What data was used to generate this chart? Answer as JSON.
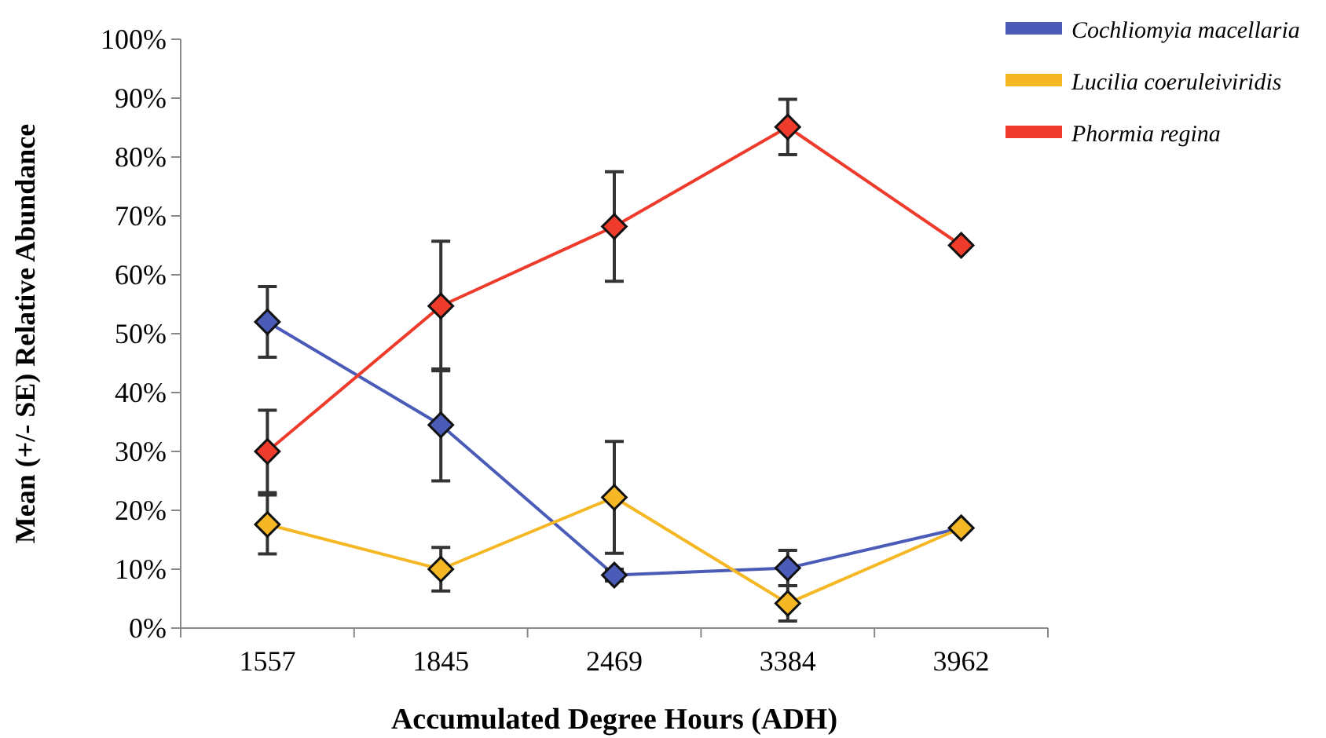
{
  "chart_data": {
    "type": "line",
    "xlabel": "Accumulated Degree Hours (ADH)",
    "ylabel": "Mean (+/- SE) Relative Abundance",
    "categories": [
      "1557",
      "1845",
      "2469",
      "3384",
      "3962"
    ],
    "series": [
      {
        "name": "Cochliomyia macellaria",
        "color": "#4a5bb8",
        "values": [
          52,
          34.5,
          9,
          10.2,
          17
        ],
        "errors": [
          6,
          9.5,
          1,
          3,
          null
        ]
      },
      {
        "name": "Lucilia coeruleiviridis",
        "color": "#f5b824",
        "values": [
          17.6,
          10,
          22.2,
          4.2,
          17
        ],
        "errors": [
          5,
          3.7,
          9.5,
          3,
          null
        ]
      },
      {
        "name": "Phormia regina",
        "color": "#ee3b2c",
        "values": [
          30,
          54.7,
          68.2,
          85.1,
          65
        ],
        "errors": [
          7,
          11,
          9.3,
          4.7,
          null
        ]
      }
    ],
    "ylim": [
      0,
      100
    ],
    "yticks": [
      {
        "value": 0,
        "label": "0%"
      },
      {
        "value": 10,
        "label": "10%"
      },
      {
        "value": 20,
        "label": "20%"
      },
      {
        "value": 30,
        "label": "30%"
      },
      {
        "value": 40,
        "label": "40%"
      },
      {
        "value": 50,
        "label": "50%"
      },
      {
        "value": 60,
        "label": "60%"
      },
      {
        "value": 70,
        "label": "70%"
      },
      {
        "value": 80,
        "label": "80%"
      },
      {
        "value": 90,
        "label": "90%"
      },
      {
        "value": 100,
        "label": "100%"
      }
    ],
    "grid": false,
    "legend": "top right",
    "marker": "diamond",
    "line_style": "solid"
  }
}
